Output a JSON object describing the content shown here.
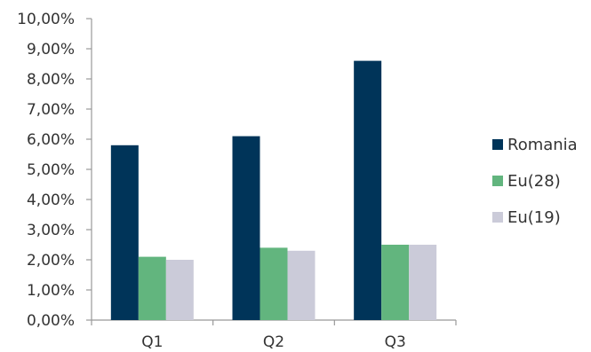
{
  "chart_data": {
    "type": "bar",
    "categories": [
      "Q1",
      "Q2",
      "Q3"
    ],
    "series": [
      {
        "name": "Romania",
        "color": "#003459",
        "values": [
          5.8,
          6.1,
          8.6
        ]
      },
      {
        "name": "Eu(28)",
        "color": "#62b57e",
        "values": [
          2.1,
          2.4,
          2.5
        ]
      },
      {
        "name": "Eu(19)",
        "color": "#cbcbd9",
        "values": [
          2.0,
          2.3,
          2.5
        ]
      }
    ],
    "y_tick_labels": [
      "0,00%",
      "1,00%",
      "2,00%",
      "3,00%",
      "4,00%",
      "5,00%",
      "6,00%",
      "7,00%",
      "8,00%",
      "9,00%",
      "10,00%"
    ],
    "ylim": [
      0,
      10
    ],
    "y_unit": "%",
    "grid": false,
    "legend_position": "right",
    "axis_color": "#999999"
  }
}
